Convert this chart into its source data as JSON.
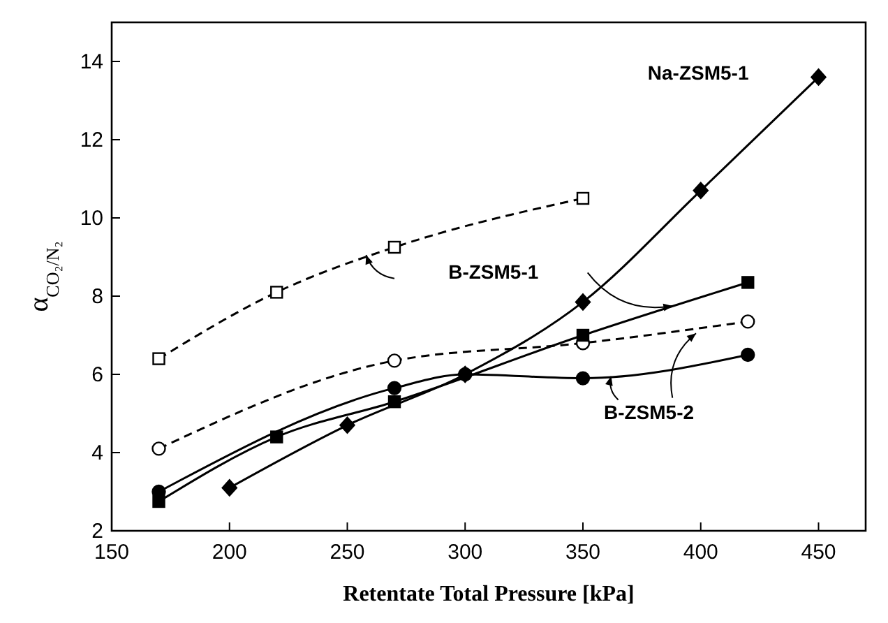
{
  "chart_data": {
    "type": "line",
    "xlabel": "Retentate Total Pressure [kPa]",
    "ylabel": "α$_{CO₂/N₂}$",
    "xlim": [
      150,
      470
    ],
    "ylim": [
      2,
      15
    ],
    "xticks": [
      150,
      200,
      250,
      300,
      350,
      400,
      450
    ],
    "yticks": [
      2,
      4,
      6,
      8,
      10,
      12,
      14
    ],
    "grid": false,
    "series": [
      {
        "name": "Na-ZSM5-1",
        "color": "#000000",
        "marker": "diamond",
        "line_style": "solid",
        "x": [
          200,
          250,
          300,
          350,
          400,
          450
        ],
        "values": [
          3.1,
          4.7,
          6.0,
          7.85,
          10.7,
          13.6
        ]
      },
      {
        "color": "#000000",
        "marker": "square",
        "line_style": "dashed",
        "x": [
          170,
          220,
          270,
          350
        ],
        "values": [
          6.4,
          8.1,
          9.25,
          10.5
        ]
      },
      {
        "color": "#000000",
        "marker": "square",
        "line_style": "solid",
        "x": [
          170,
          220,
          270,
          350,
          420
        ],
        "values": [
          2.75,
          4.4,
          5.3,
          7.0,
          8.35
        ]
      },
      {
        "color": "#000000",
        "marker": "circle",
        "line_style": "dashed",
        "x": [
          170,
          270,
          350,
          420
        ],
        "values": [
          4.1,
          6.35,
          6.8,
          7.35
        ]
      },
      {
        "color": "#000000",
        "marker": "circle",
        "line_style": "solid",
        "x": [
          170,
          270,
          300,
          350,
          420
        ],
        "values": [
          3.0,
          5.65,
          6.0,
          5.9,
          6.5
        ]
      }
    ],
    "annotations": [
      "B-ZSM5-1",
      {
        "text": "B-ZSM5-2",
        "x": 362,
        "y": 5.95
      }
    ]
  }
}
